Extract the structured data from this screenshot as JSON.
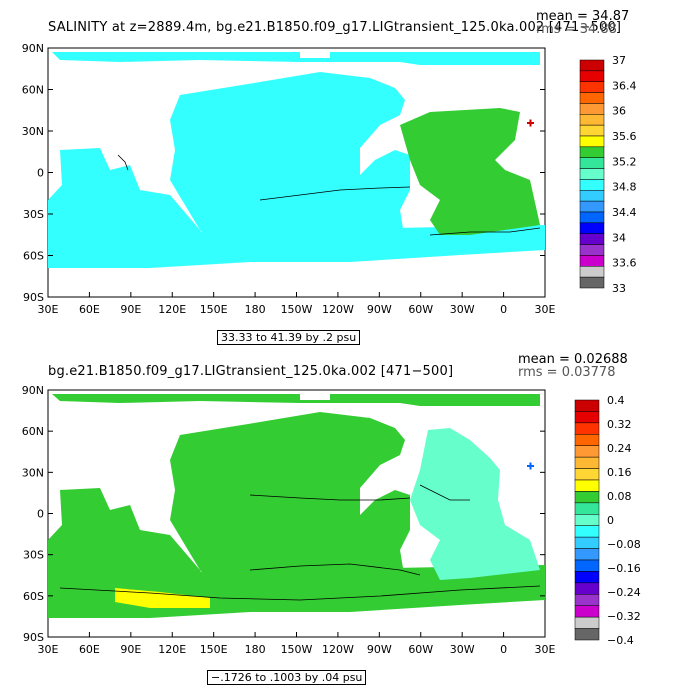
{
  "panels": [
    {
      "title": "SALINITY at z=2889.4m, bg.e21.B1850.f09_g17.LIGtransient_125.0ka.002 [471−500]",
      "mean_text": "mean = 34.87",
      "rms_text": "rms = 34.88",
      "range_text": "33.33 to 41.39 by .2 psu",
      "colorbar_labels": [
        "37",
        "36.4",
        "36",
        "35.6",
        "35.2",
        "34.8",
        "34.4",
        "34",
        "33.6",
        "33"
      ],
      "colorbar_colors": [
        "#cc0000",
        "#e60000",
        "#ff3300",
        "#ff6600",
        "#ff9933",
        "#ffb833",
        "#ffd633",
        "#ffff00",
        "#33cc33",
        "#33e699",
        "#66ffcc",
        "#33ffff",
        "#33ccff",
        "#3399ff",
        "#0066ff",
        "#0000ff",
        "#6600cc",
        "#9933cc",
        "#cc00cc",
        "#cccccc",
        "#666666"
      ],
      "ocean_colors": {
        "pacific": "#33ffff",
        "atlantic": "#33cc33",
        "southern": "#33ffff",
        "indian": "#33ffff"
      }
    },
    {
      "title": "bg.e21.B1850.f09_g17.LIGtransient_125.0ka.002 [471−500]",
      "mean_text": "mean = 0.02688",
      "rms_text": "rms = 0.03778",
      "range_text": "−.1726 to .1003 by .04 psu",
      "colorbar_labels": [
        "0.4",
        "0.32",
        "0.24",
        "0.16",
        "0.08",
        "0",
        "−0.08",
        "−0.16",
        "−0.24",
        "−0.32",
        "−0.4"
      ],
      "colorbar_colors": [
        "#cc0000",
        "#e60000",
        "#ff3300",
        "#ff6600",
        "#ff9933",
        "#ffb833",
        "#ffd633",
        "#ffff00",
        "#33cc33",
        "#33e699",
        "#66ffcc",
        "#33ffff",
        "#33ccff",
        "#3399ff",
        "#0066ff",
        "#0000ff",
        "#6600cc",
        "#9933cc",
        "#cc00cc",
        "#cccccc",
        "#666666"
      ],
      "ocean_colors": {
        "pacific": "#33cc33",
        "atlantic": "#66ffcc",
        "southern": "#33cc33",
        "indian": "#33cc33"
      }
    }
  ],
  "axes": {
    "x_ticks": [
      "30E",
      "60E",
      "90E",
      "120E",
      "150E",
      "180",
      "150W",
      "120W",
      "90W",
      "60W",
      "30W",
      "0",
      "30E"
    ],
    "y_ticks": [
      "90N",
      "60N",
      "30N",
      "0",
      "30S",
      "60S",
      "90S"
    ]
  },
  "chart_data": [
    {
      "type": "heatmap",
      "title": "SALINITY at z=2889.4m, bg.e21.B1850.f09_g17.LIGtransient_125.0ka.002 [471−500]",
      "x": [
        "30E",
        "60E",
        "90E",
        "120E",
        "150E",
        "180",
        "150W",
        "120W",
        "90W",
        "60W",
        "30W",
        "0",
        "30E"
      ],
      "y": [
        "90N",
        "60N",
        "30N",
        "0",
        "30S",
        "60S",
        "90S"
      ],
      "xlim": [
        30,
        390
      ],
      "ylim": [
        -90,
        90
      ],
      "colorbar_levels": [
        33,
        33.6,
        34,
        34.4,
        34.8,
        35.2,
        35.6,
        36,
        36.4,
        37
      ],
      "mean": 34.87,
      "rms": 34.88,
      "field_min": 33.33,
      "field_max": 41.39,
      "contour_interval": 0.2,
      "units": "psu"
    },
    {
      "type": "heatmap",
      "title": "bg.e21.B1850.f09_g17.LIGtransient_125.0ka.002 [471−500]",
      "x": [
        "30E",
        "60E",
        "90E",
        "120E",
        "150E",
        "180",
        "150W",
        "120W",
        "90W",
        "60W",
        "30W",
        "0",
        "30E"
      ],
      "y": [
        "90N",
        "60N",
        "30N",
        "0",
        "30S",
        "60S",
        "90S"
      ],
      "xlim": [
        30,
        390
      ],
      "ylim": [
        -90,
        90
      ],
      "colorbar_levels": [
        -0.4,
        -0.32,
        -0.24,
        -0.16,
        -0.08,
        0,
        0.08,
        0.16,
        0.24,
        0.32,
        0.4
      ],
      "mean": 0.02688,
      "rms": 0.03778,
      "field_min": -0.1726,
      "field_max": 0.1003,
      "contour_interval": 0.04,
      "units": "psu"
    }
  ]
}
